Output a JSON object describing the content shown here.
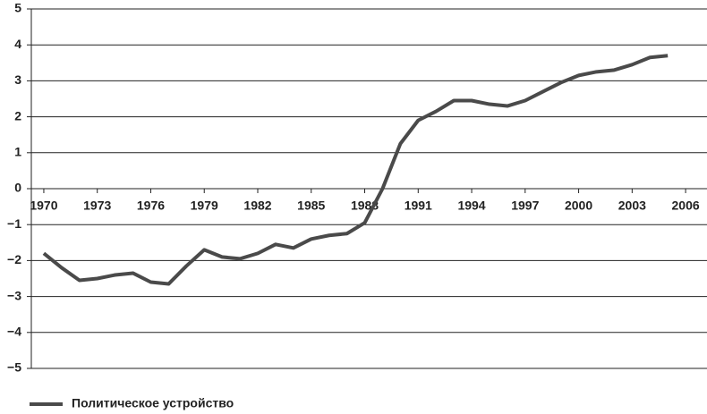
{
  "chart_data": {
    "type": "line",
    "x": [
      1970,
      1971,
      1972,
      1973,
      1974,
      1975,
      1976,
      1977,
      1978,
      1979,
      1980,
      1981,
      1982,
      1983,
      1984,
      1985,
      1986,
      1987,
      1988,
      1989,
      1990,
      1991,
      1992,
      1993,
      1994,
      1995,
      1996,
      1997,
      1998,
      1999,
      2000,
      2001,
      2002,
      2003,
      2004,
      2005
    ],
    "series": [
      {
        "name": "Политическое устройство",
        "color": "#4a4a4a",
        "values": [
          -1.8,
          -2.2,
          -2.55,
          -2.5,
          -2.4,
          -2.35,
          -2.6,
          -2.65,
          -2.15,
          -1.7,
          -1.9,
          -1.95,
          -1.8,
          -1.55,
          -1.65,
          -1.4,
          -1.3,
          -1.25,
          -0.95,
          0.0,
          1.25,
          1.9,
          2.15,
          2.45,
          2.45,
          2.35,
          2.3,
          2.45,
          2.7,
          2.95,
          3.15,
          3.25,
          3.3,
          3.45,
          3.65,
          3.7
        ]
      }
    ],
    "xlim": [
      1969.3,
      2007.2
    ],
    "xticks": [
      1970,
      1973,
      1976,
      1979,
      1982,
      1985,
      1988,
      1991,
      1994,
      1997,
      2000,
      2003,
      2006
    ],
    "ylim": [
      -5,
      5
    ],
    "yticks": [
      {
        "value": -5,
        "label": "−5"
      },
      {
        "value": -4,
        "label": "−4"
      },
      {
        "value": -3,
        "label": "−3"
      },
      {
        "value": -2,
        "label": "−2"
      },
      {
        "value": -1,
        "label": "−1"
      },
      0,
      1,
      2,
      3,
      4,
      5
    ],
    "grid": true,
    "legend": "bottom-left"
  }
}
